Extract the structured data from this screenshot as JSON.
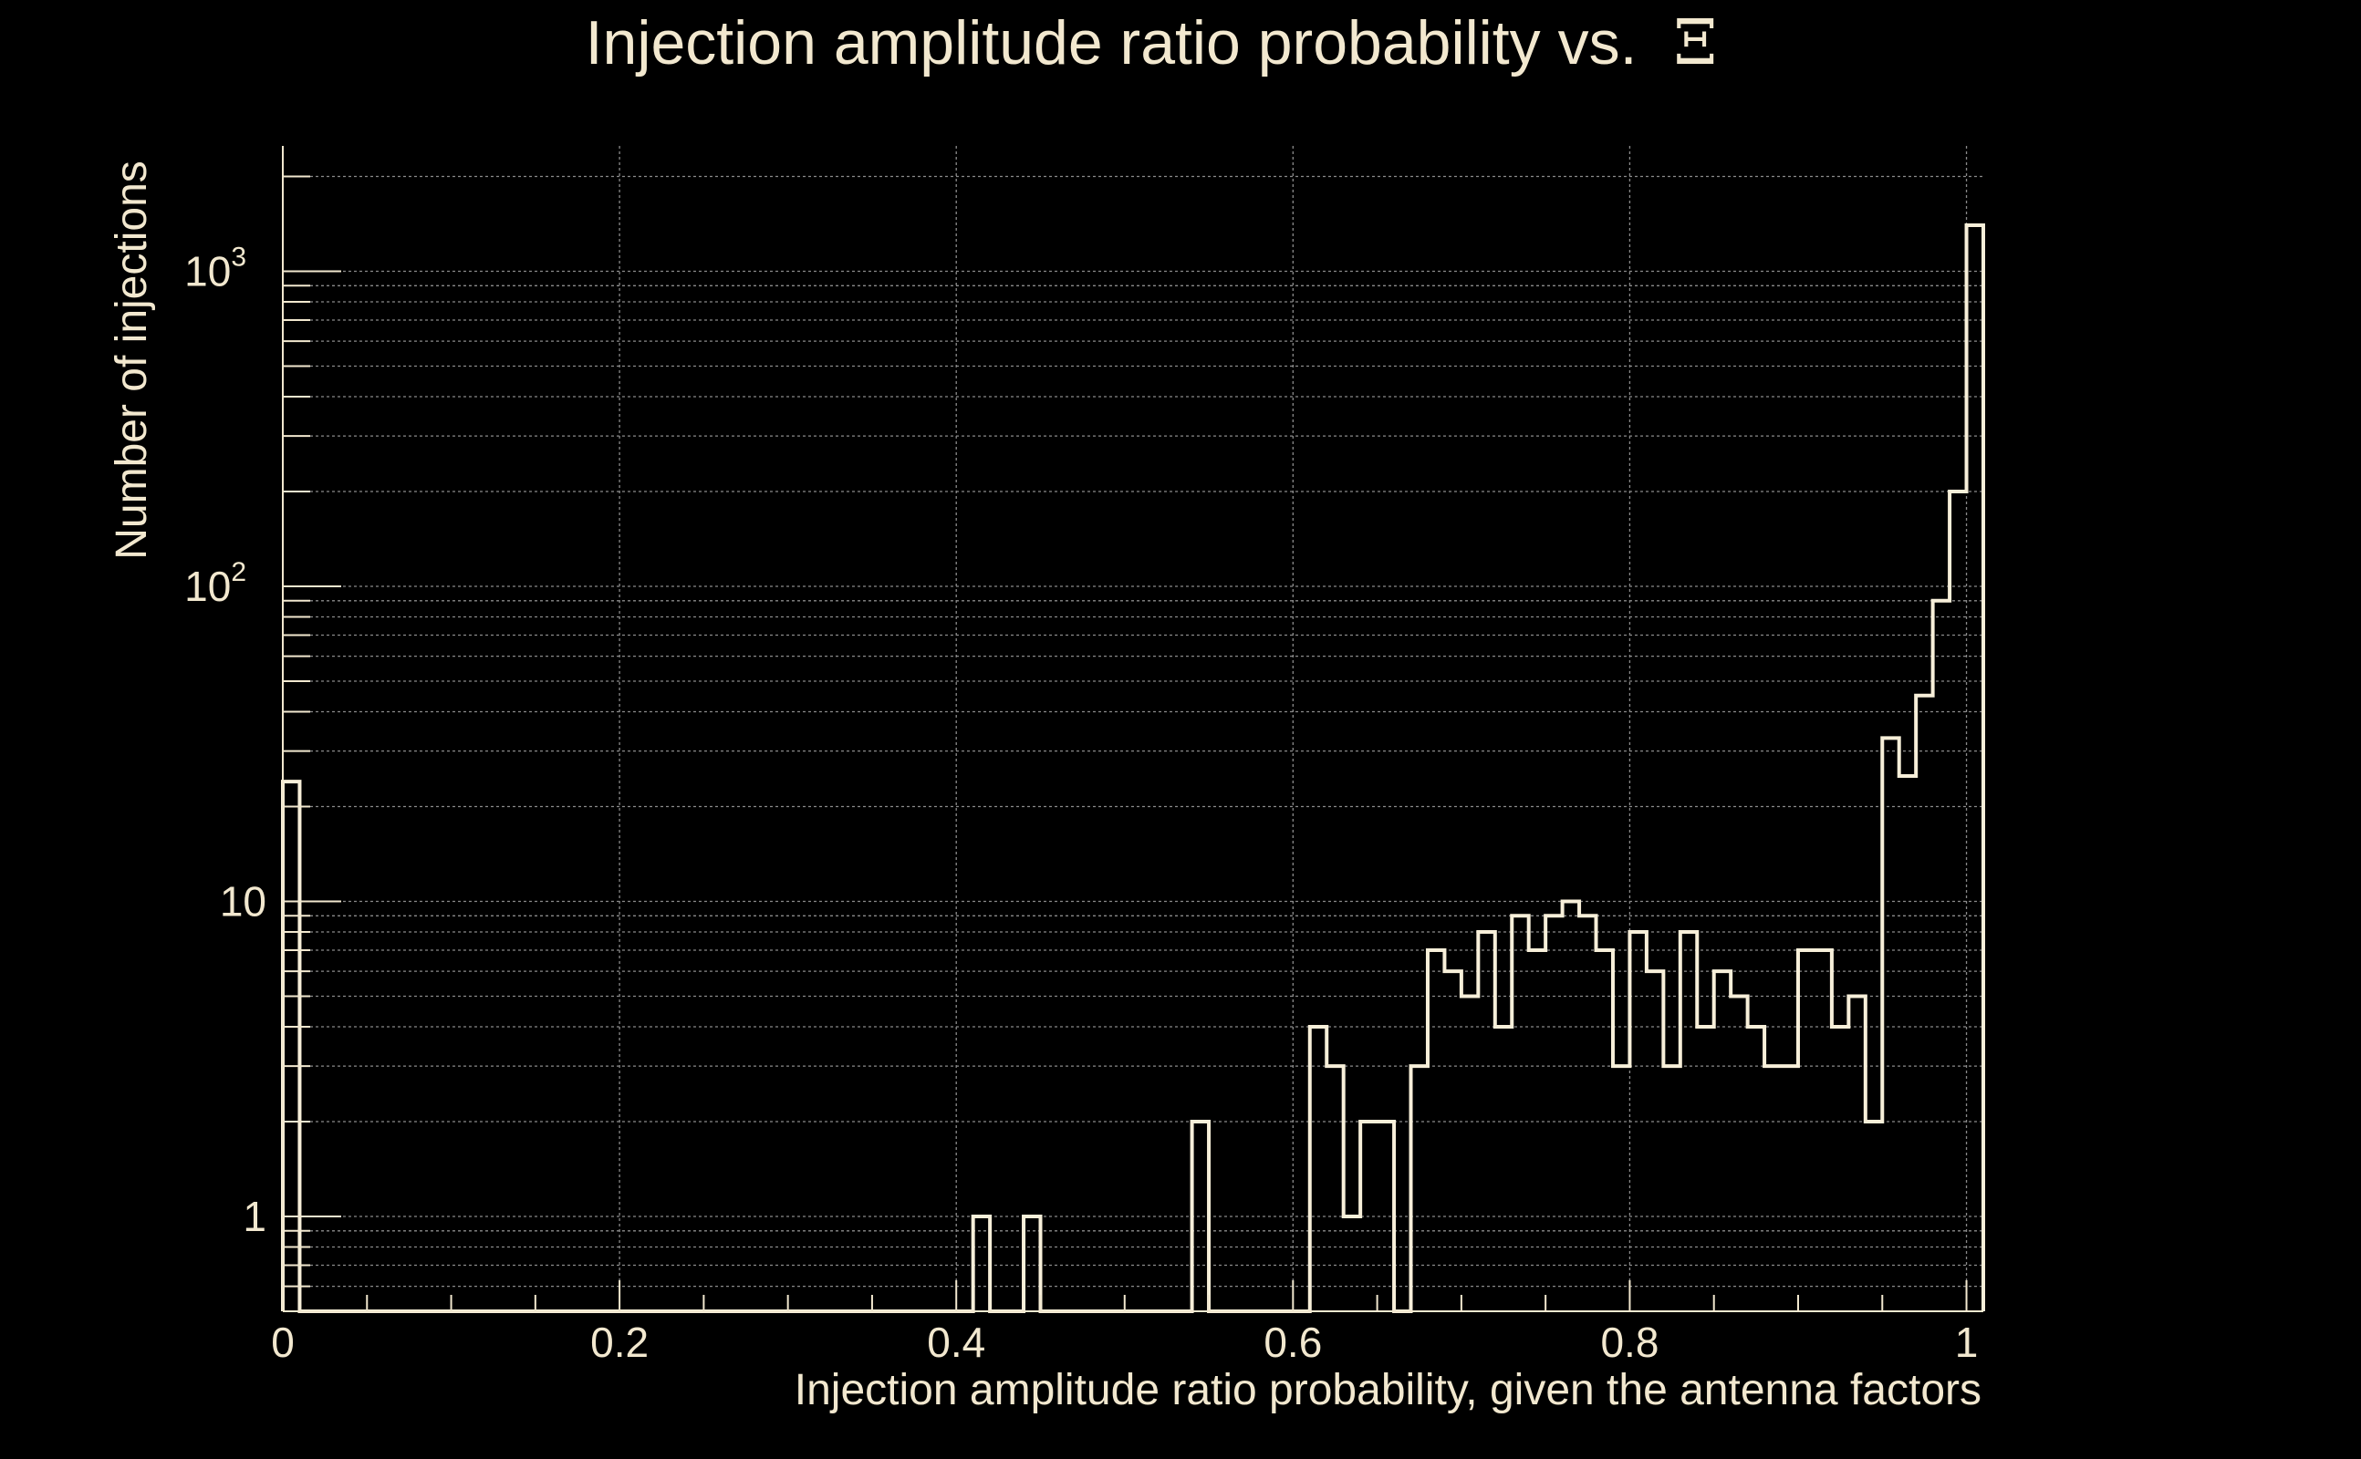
{
  "chart_data": {
    "type": "histogram",
    "title": "Injection amplitude ratio probability vs.",
    "title_symbol": "Ξ",
    "xlabel": "Injection amplitude ratio probability, given the antenna factors",
    "ylabel": "Number of injections",
    "xlim": [
      0,
      1.01
    ],
    "ylim": [
      0.5,
      2500
    ],
    "y_scale": "log",
    "grid": true,
    "x_ticks": [
      {
        "value": 0,
        "label": "0"
      },
      {
        "value": 0.2,
        "label": "0.2"
      },
      {
        "value": 0.4,
        "label": "0.4"
      },
      {
        "value": 0.6,
        "label": "0.6"
      },
      {
        "value": 0.8,
        "label": "0.8"
      },
      {
        "value": 1,
        "label": "1"
      }
    ],
    "y_ticks": [
      {
        "value": 1,
        "base": "1",
        "exp": ""
      },
      {
        "value": 10,
        "base": "10",
        "exp": ""
      },
      {
        "value": 100,
        "base": "10",
        "exp": "2"
      },
      {
        "value": 1000,
        "base": "10",
        "exp": "3"
      }
    ],
    "bin_width": 0.01,
    "bin_start": 0,
    "counts": [
      24,
      0,
      0,
      0,
      0,
      0,
      0,
      0,
      0,
      0,
      0,
      0,
      0,
      0,
      0,
      0,
      0,
      0,
      0,
      0,
      0,
      0,
      0,
      0,
      0,
      0,
      0,
      0,
      0,
      0,
      0,
      0,
      0,
      0,
      0,
      0,
      0,
      0,
      0,
      0,
      0,
      1,
      0,
      0,
      1,
      0,
      0,
      0,
      0,
      0,
      0,
      0,
      0,
      0,
      2,
      0,
      0,
      0,
      0,
      0,
      0,
      4,
      3,
      1,
      2,
      2,
      0,
      3,
      7,
      6,
      5,
      8,
      4,
      9,
      7,
      9,
      10,
      9,
      7,
      3,
      8,
      6,
      3,
      8,
      4,
      6,
      5,
      4,
      3,
      3,
      7,
      7,
      4,
      5,
      2,
      33,
      25,
      45,
      90,
      200,
      1400
    ]
  }
}
